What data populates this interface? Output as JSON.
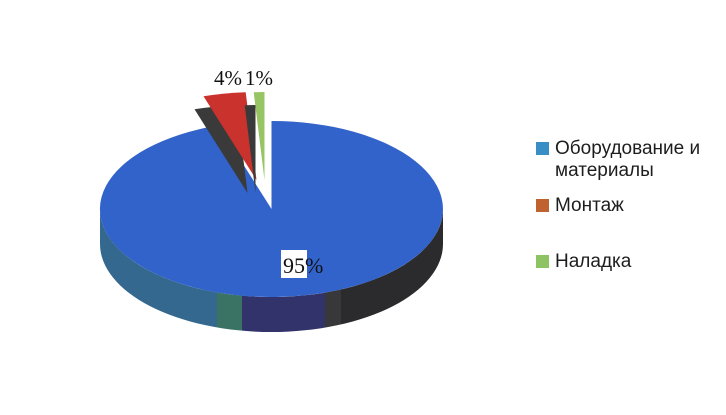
{
  "chart_data": {
    "type": "pie",
    "style": "3d pie, minor slices exploded and raised, no title, white background",
    "unit": "%",
    "direction": "clockwise",
    "start_angle_deg": 0,
    "legend_position": "right",
    "slices": [
      {
        "label": "Оборудование и материалы",
        "value": 95,
        "display": "95%",
        "pie_color": "#3263CA",
        "legend_color": "#3A8EC6",
        "exploded": false
      },
      {
        "label": "Монтаж",
        "value": 4,
        "display": "4%",
        "pie_color": "#CA322E",
        "legend_color": "#C0622F",
        "exploded": true
      },
      {
        "label": "Наладка",
        "value": 1,
        "display": "1%",
        "pie_color": "#98C564",
        "legend_color": "#8DC363",
        "exploded": true
      }
    ],
    "rim_shading": [
      "#35688F",
      "#3A7263",
      "#32336B",
      "#38383A",
      "#2B2B2D"
    ],
    "side_shadow_color": "#3A3A3A",
    "label_background": "#FFFFFF",
    "label_text_color": "#111111",
    "legend_text_color": "#1D1D1D",
    "background": "#FFFFFF"
  }
}
